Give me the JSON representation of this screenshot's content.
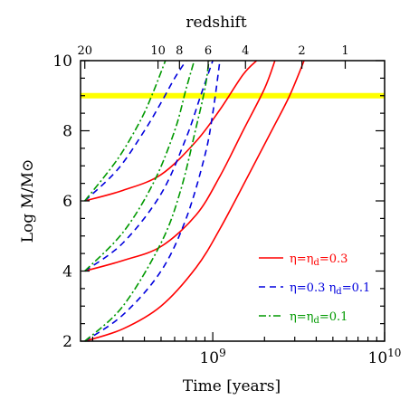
{
  "chart_data": {
    "type": "line",
    "xlabel": "Time [years]",
    "ylabel": "Log M/M⊙",
    "top_axis_label": "redshift",
    "x_scale": "log",
    "xlim": [
      170000000,
      10000000000
    ],
    "ylim": [
      2,
      10
    ],
    "x_tick_labels": [
      {
        "value": 1000000000,
        "base": "10",
        "exp": "9"
      },
      {
        "value": 10000000000,
        "base": "10",
        "exp": "10"
      }
    ],
    "y_ticks": [
      2,
      4,
      6,
      8,
      10
    ],
    "top_ticks": [
      {
        "label": "20",
        "time": 180000000
      },
      {
        "label": "10",
        "time": 480000000
      },
      {
        "label": "8",
        "time": 640000000
      },
      {
        "label": "6",
        "time": 940000000
      },
      {
        "label": "4",
        "time": 1550000000
      },
      {
        "label": "2",
        "time": 3300000000
      },
      {
        "label": "1",
        "time": 5900000000
      }
    ],
    "grid": false,
    "legend_position": "bottom-right",
    "reference_lines": [
      {
        "y": 9.0,
        "color": "#ffff00"
      }
    ],
    "series": [
      {
        "name": "η=ηd=0.3",
        "color": "#ff0000",
        "dash": "solid",
        "curve": "seed 2",
        "points": [
          [
            180000000,
            2.0
          ],
          [
            300000000,
            2.35
          ],
          [
            500000000,
            3.0
          ],
          [
            800000000,
            4.1
          ],
          [
            1100000000,
            5.2
          ],
          [
            1600000000,
            6.7
          ],
          [
            2200000000,
            8.0
          ],
          [
            2800000000,
            9.0
          ],
          [
            3400000000,
            10.0
          ]
        ]
      },
      {
        "name": "η=ηd=0.3",
        "color": "#ff0000",
        "dash": "solid",
        "curve": "seed 4",
        "points": [
          [
            180000000,
            4.0
          ],
          [
            300000000,
            4.3
          ],
          [
            500000000,
            4.7
          ],
          [
            800000000,
            5.6
          ],
          [
            1100000000,
            6.7
          ],
          [
            1500000000,
            8.0
          ],
          [
            2000000000,
            9.2
          ],
          [
            2300000000,
            10.0
          ]
        ]
      },
      {
        "name": "η=ηd=0.3",
        "color": "#ff0000",
        "dash": "solid",
        "curve": "seed 6",
        "points": [
          [
            180000000,
            6.0
          ],
          [
            300000000,
            6.3
          ],
          [
            500000000,
            6.75
          ],
          [
            800000000,
            7.7
          ],
          [
            1100000000,
            8.6
          ],
          [
            1500000000,
            9.6
          ],
          [
            1800000000,
            10.0
          ]
        ]
      },
      {
        "name": "η=0.3 ηd=0.1",
        "color": "#0000dd",
        "dash": "dashed",
        "curve": "seed 2",
        "points": [
          [
            180000000,
            2.0
          ],
          [
            300000000,
            2.75
          ],
          [
            500000000,
            4.0
          ],
          [
            700000000,
            5.5
          ],
          [
            900000000,
            7.3
          ],
          [
            1000000000,
            8.5
          ],
          [
            1100000000,
            10.0
          ]
        ]
      },
      {
        "name": "η=0.3 ηd=0.1",
        "color": "#0000dd",
        "dash": "dashed",
        "curve": "seed 4",
        "points": [
          [
            180000000,
            4.0
          ],
          [
            300000000,
            4.8
          ],
          [
            500000000,
            6.2
          ],
          [
            700000000,
            7.8
          ],
          [
            850000000,
            9.0
          ],
          [
            1000000000,
            10.0
          ]
        ]
      },
      {
        "name": "η=0.3 ηd=0.1",
        "color": "#0000dd",
        "dash": "dashed",
        "curve": "seed 6",
        "points": [
          [
            180000000,
            6.0
          ],
          [
            280000000,
            6.9
          ],
          [
            400000000,
            8.0
          ],
          [
            500000000,
            8.8
          ],
          [
            600000000,
            9.5
          ],
          [
            700000000,
            10.0
          ]
        ]
      },
      {
        "name": "η=ηd=0.1",
        "color": "#009900",
        "dash": "dashdot",
        "curve": "seed 2",
        "points": [
          [
            180000000,
            2.0
          ],
          [
            300000000,
            3.0
          ],
          [
            500000000,
            4.8
          ],
          [
            650000000,
            6.3
          ],
          [
            800000000,
            8.1
          ],
          [
            900000000,
            9.2
          ],
          [
            950000000,
            10.0
          ]
        ]
      },
      {
        "name": "η=ηd=0.1",
        "color": "#009900",
        "dash": "dashdot",
        "curve": "seed 4",
        "points": [
          [
            180000000,
            4.0
          ],
          [
            300000000,
            5.1
          ],
          [
            450000000,
            6.5
          ],
          [
            600000000,
            8.0
          ],
          [
            700000000,
            9.2
          ],
          [
            780000000,
            10.0
          ]
        ]
      },
      {
        "name": "η=ηd=0.1",
        "color": "#009900",
        "dash": "dashdot",
        "curve": "seed 6",
        "points": [
          [
            180000000,
            6.0
          ],
          [
            280000000,
            7.2
          ],
          [
            380000000,
            8.3
          ],
          [
            450000000,
            9.1
          ],
          [
            530000000,
            10.0
          ]
        ]
      }
    ],
    "legend": [
      {
        "color": "#ff0000",
        "dash": "solid",
        "label_parts": [
          {
            "text": "η=η"
          },
          {
            "text": "d",
            "sub": true
          },
          {
            "text": "=0.3"
          }
        ]
      },
      {
        "color": "#0000dd",
        "dash": "dashed",
        "label_parts": [
          {
            "text": "η=0.3  η"
          },
          {
            "text": "d",
            "sub": true
          },
          {
            "text": "=0.1"
          }
        ]
      },
      {
        "color": "#009900",
        "dash": "dashdot",
        "label_parts": [
          {
            "text": "η=η"
          },
          {
            "text": "d",
            "sub": true
          },
          {
            "text": "=0.1"
          }
        ]
      }
    ]
  }
}
